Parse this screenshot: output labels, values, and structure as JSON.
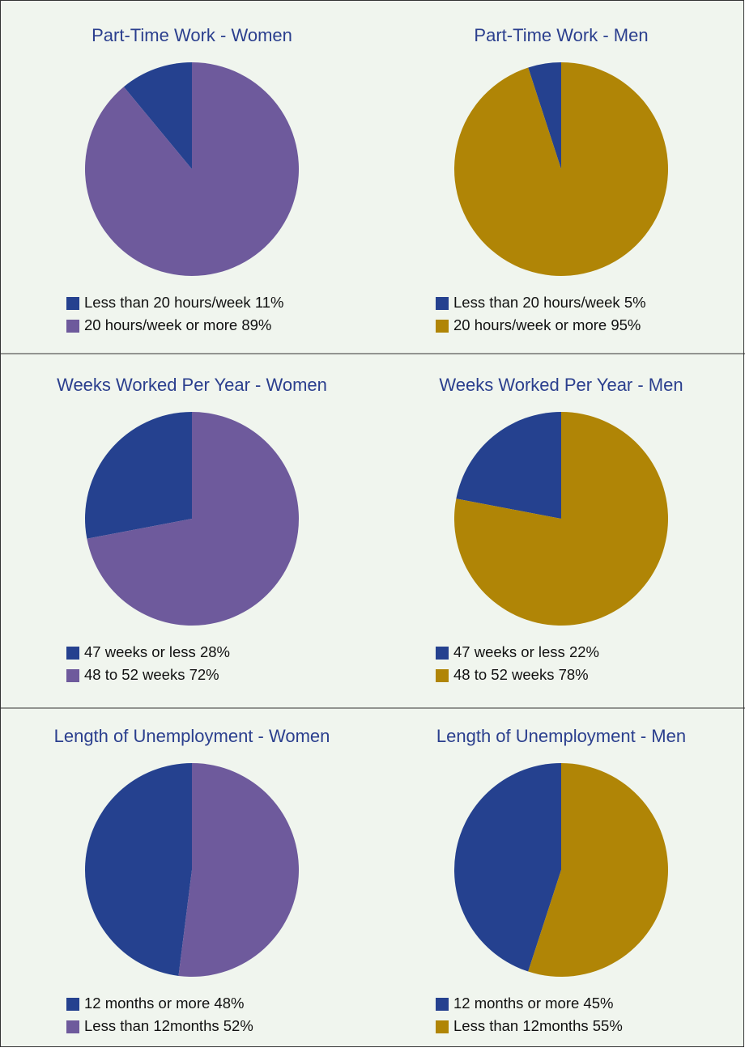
{
  "chart_data": [
    {
      "type": "pie",
      "title": "Part-Time Work - Women",
      "categories": [
        "Less than 20 hours/week",
        "20 hours/week or more"
      ],
      "values": [
        11,
        89
      ],
      "value_labels": [
        "11%",
        "89%"
      ],
      "colors": [
        "#25418f",
        "#6e5a9c"
      ]
    },
    {
      "type": "pie",
      "title": "Part-Time Work - Men",
      "categories": [
        "Less than 20 hours/week",
        "20 hours/week or more"
      ],
      "values": [
        5,
        95
      ],
      "value_labels": [
        "5%",
        "95%"
      ],
      "colors": [
        "#25418f",
        "#b08506"
      ]
    },
    {
      "type": "pie",
      "title": "Weeks Worked Per Year - Women",
      "categories": [
        "47 weeks or less",
        "48 to 52 weeks"
      ],
      "values": [
        28,
        72
      ],
      "value_labels": [
        "28%",
        "72%"
      ],
      "colors": [
        "#25418f",
        "#6e5a9c"
      ]
    },
    {
      "type": "pie",
      "title": "Weeks Worked Per Year - Men",
      "categories": [
        "47 weeks or less",
        "48 to 52 weeks"
      ],
      "values": [
        22,
        78
      ],
      "value_labels": [
        "22%",
        "78%"
      ],
      "colors": [
        "#25418f",
        "#b08506"
      ]
    },
    {
      "type": "pie",
      "title": "Length of Unemployment - Women",
      "categories": [
        "12 months or more",
        "Less than 12months"
      ],
      "values": [
        48,
        52
      ],
      "value_labels": [
        "48%",
        "52%"
      ],
      "colors": [
        "#25418f",
        "#6e5a9c"
      ]
    },
    {
      "type": "pie",
      "title": "Length of Unemployment - Men",
      "categories": [
        "12 months or more",
        "Less than 12months"
      ],
      "values": [
        45,
        55
      ],
      "value_labels": [
        "45%",
        "55%"
      ],
      "colors": [
        "#25418f",
        "#b08506"
      ]
    }
  ]
}
